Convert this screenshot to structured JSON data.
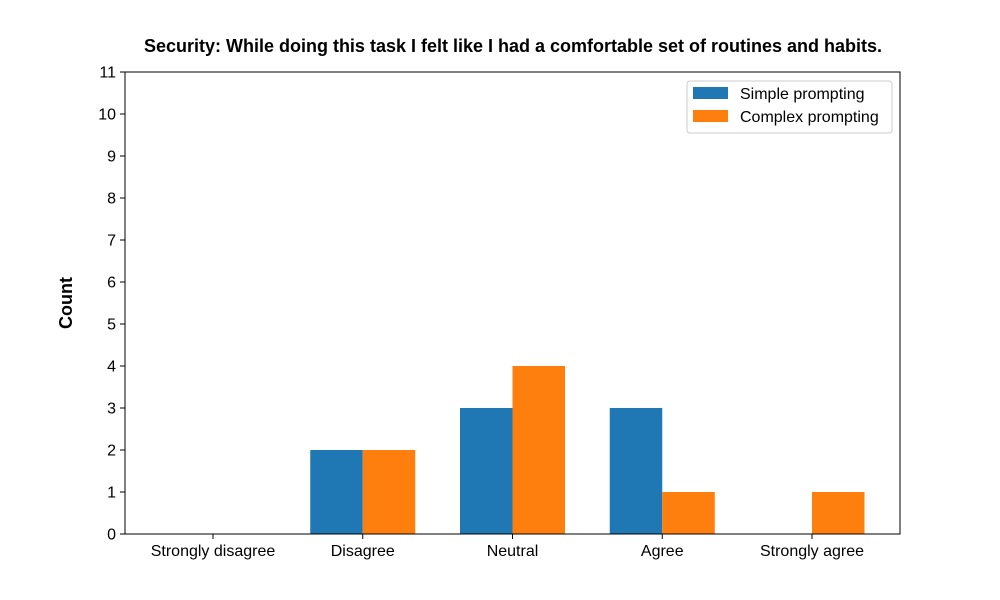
{
  "chart_data": {
    "type": "bar",
    "title": "Security: While doing this task I felt like I had a comfortable set of routines and habits.",
    "xlabel": "",
    "ylabel": "Count",
    "categories": [
      "Strongly disagree",
      "Disagree",
      "Neutral",
      "Agree",
      "Strongly agree"
    ],
    "series": [
      {
        "name": "Simple prompting",
        "values": [
          0,
          2,
          3,
          3,
          0
        ],
        "color": "#1f77b4"
      },
      {
        "name": "Complex prompting",
        "values": [
          0,
          2,
          4,
          1,
          1
        ],
        "color": "#ff7f0e"
      }
    ],
    "ylim": [
      0,
      11
    ],
    "yticks": [
      "0",
      "1",
      "2",
      "3",
      "4",
      "5",
      "6",
      "7",
      "8",
      "9",
      "10",
      "11"
    ],
    "grid": false,
    "legend_position": "top-right"
  }
}
